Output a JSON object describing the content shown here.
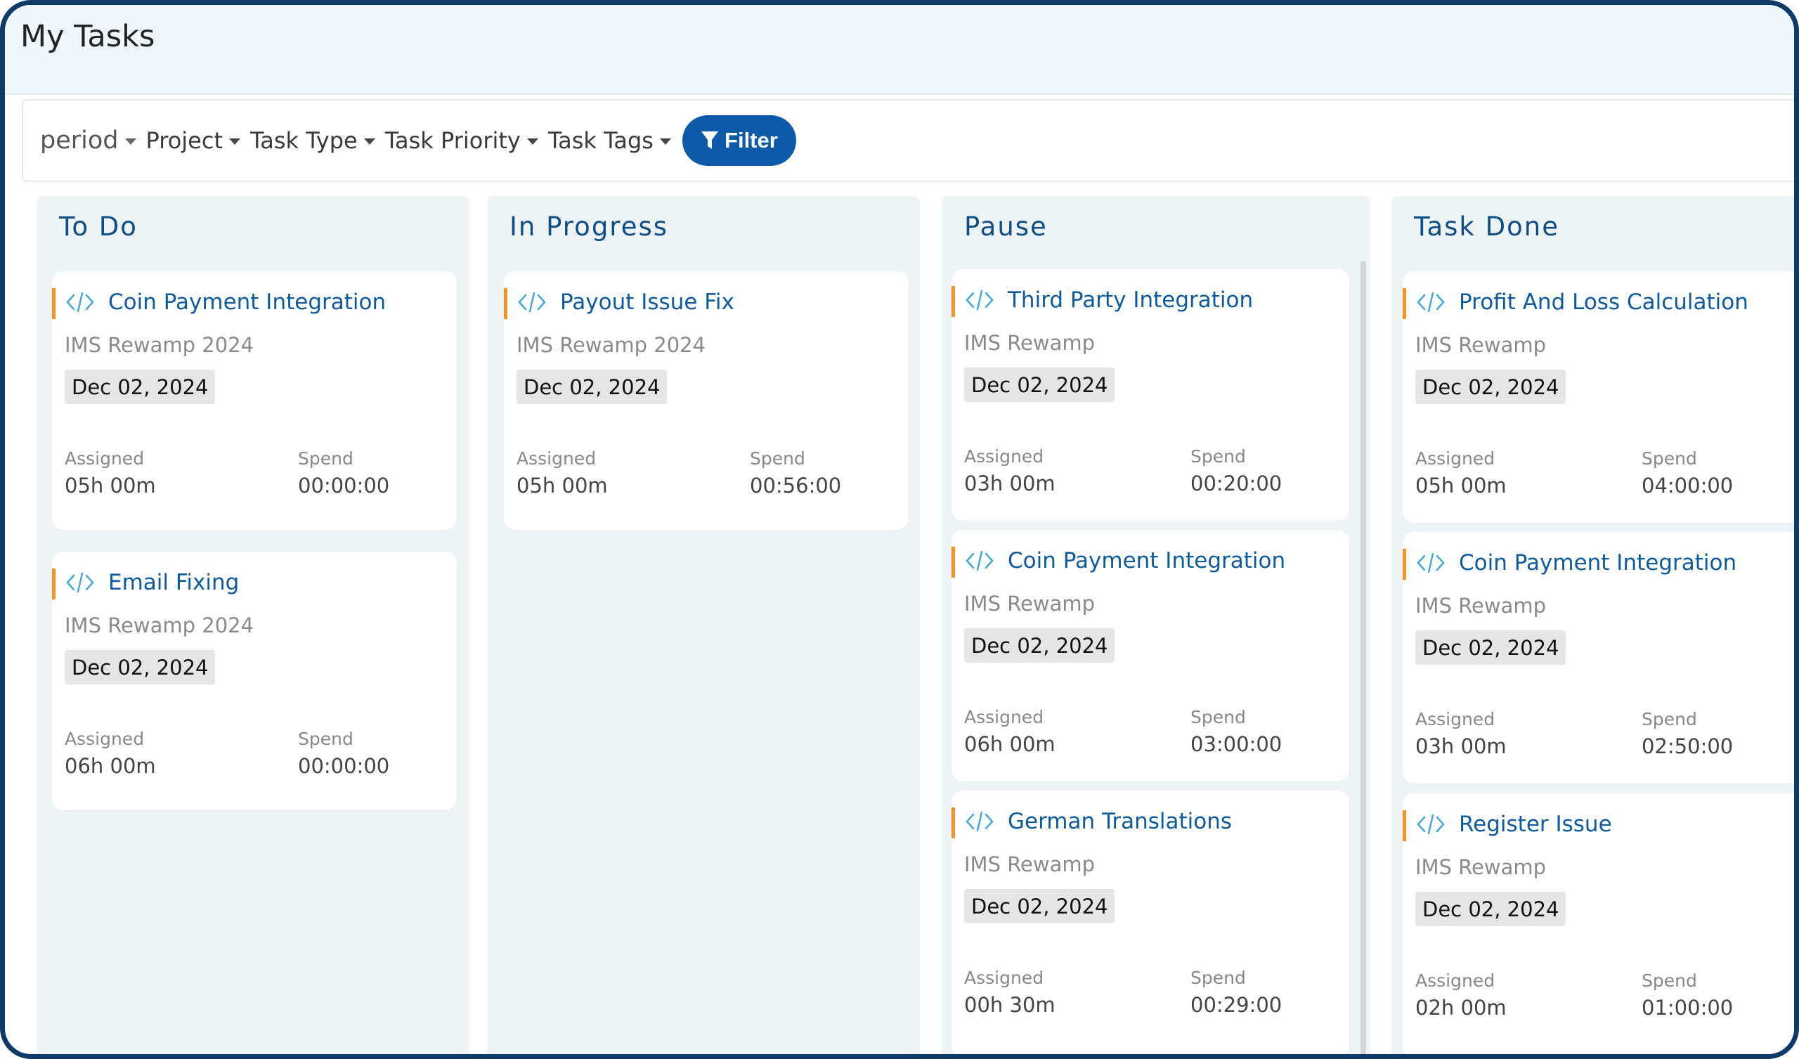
{
  "page": {
    "title": "My Tasks"
  },
  "filters": {
    "items": [
      "period",
      "Project",
      "Task Type",
      "Task Priority",
      "Task Tags"
    ],
    "button_label": "Filter"
  },
  "icons": {
    "task": "code-icon",
    "filter": "funnel-icon",
    "dropdown": "caret-down-icon"
  },
  "colors": {
    "accent": "#f39324",
    "primary": "#0d5aa8",
    "column_title": "#0f4d86",
    "task_title": "#0f5a9c"
  },
  "labels": {
    "assigned": "Assigned",
    "spend": "Spend"
  },
  "columns": [
    {
      "title": "To Do",
      "cards": [
        {
          "name": "Coin Payment Integration",
          "project": "IMS Rewamp 2024",
          "date": "Dec 02, 2024",
          "assigned": "05h 00m",
          "spend": "00:00:00"
        },
        {
          "name": "Email Fixing",
          "project": "IMS Rewamp 2024",
          "date": "Dec 02, 2024",
          "assigned": "06h 00m",
          "spend": "00:00:00"
        }
      ]
    },
    {
      "title": "In Progress",
      "cards": [
        {
          "name": "Payout Issue Fix",
          "project": "IMS Rewamp 2024",
          "date": "Dec 02, 2024",
          "assigned": "05h 00m",
          "spend": "00:56:00"
        }
      ]
    },
    {
      "title": "Pause",
      "cards": [
        {
          "name": "Third Party Integration",
          "project": "IMS Rewamp",
          "date": "Dec 02, 2024",
          "assigned": "03h 00m",
          "spend": "00:20:00"
        },
        {
          "name": "Coin Payment Integration",
          "project": "IMS Rewamp",
          "date": "Dec 02, 2024",
          "assigned": "06h 00m",
          "spend": "03:00:00"
        },
        {
          "name": "German Translations",
          "project": "IMS Rewamp",
          "date": "Dec 02, 2024",
          "assigned": "00h 30m",
          "spend": "00:29:00"
        }
      ]
    },
    {
      "title": "Task Done",
      "cards": [
        {
          "name": "Profit And Loss Calculation",
          "project": "IMS Rewamp",
          "date": "Dec 02, 2024",
          "assigned": "05h 00m",
          "spend": "04:00:00"
        },
        {
          "name": "Coin Payment Integration",
          "project": "IMS Rewamp",
          "date": "Dec 02, 2024",
          "assigned": "03h 00m",
          "spend": "02:50:00"
        },
        {
          "name": "Register Issue",
          "project": "IMS Rewamp",
          "date": "Dec 02, 2024",
          "assigned": "02h 00m",
          "spend": "01:00:00"
        }
      ]
    }
  ]
}
